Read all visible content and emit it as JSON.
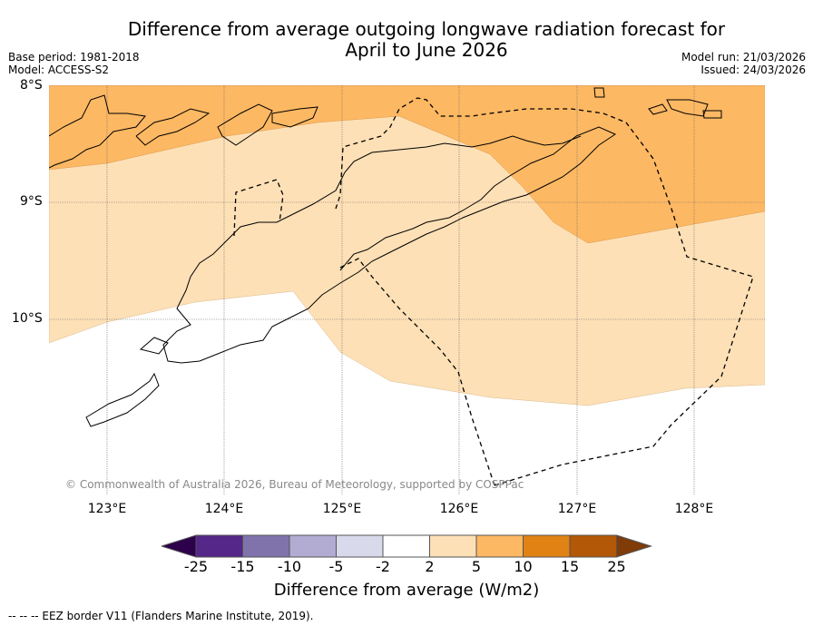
{
  "title_line1": "Difference from average outgoing longwave radiation forecast for",
  "title_line2": "April to June 2026",
  "base_period": "Base period: 1981-2018",
  "model": "Model: ACCESS-S2",
  "model_run": "Model run: 21/03/2026",
  "issued": "Issued: 24/03/2026",
  "lat_labels": [
    "8°S",
    "9°S",
    "10°S"
  ],
  "lon_labels": [
    "123°E",
    "124°E",
    "125°E",
    "126°E",
    "127°E",
    "128°E"
  ],
  "credit": "© Commonwealth of Australia 2026, Bureau of Meteorology, supported by COSPPac",
  "colorbar": {
    "ticks": [
      "-25",
      "-15",
      "-10",
      "-5",
      "-2",
      "2",
      "5",
      "10",
      "15",
      "25"
    ],
    "colors": [
      "#2d004b",
      "#542788",
      "#8073ac",
      "#b2abd2",
      "#d8daeb",
      "#ffffff",
      "#fee0b6",
      "#fdb863",
      "#e08214",
      "#b35806",
      "#7f3b08"
    ],
    "label": "Difference from average (W/m2)"
  },
  "legend_note": "--  --  -- EEZ border V11 (Flanders Marine Institute, 2019)."
}
